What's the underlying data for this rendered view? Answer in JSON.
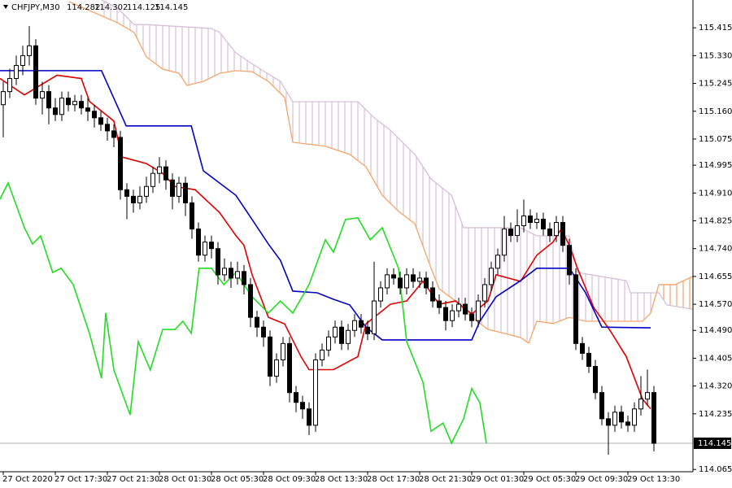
{
  "header": {
    "symbol": "CHFJPY,M30",
    "ohlc_labels": [
      "114.282",
      "114.302",
      "114.125",
      "114.145"
    ]
  },
  "chart_data": {
    "type": "candlestick",
    "xlim": [
      -0.5,
      106
    ],
    "ylim": [
      114.058,
      115.5
    ],
    "xticks": [
      {
        "value": 0,
        "label": "27 Oct 2020"
      },
      {
        "value": 8,
        "label": "27 Oct 17:30"
      },
      {
        "value": 16,
        "label": "27 Oct 21:30"
      },
      {
        "value": 24,
        "label": "28 Oct 01:30"
      },
      {
        "value": 32,
        "label": "28 Oct 05:30"
      },
      {
        "value": 40,
        "label": "28 Oct 09:30"
      },
      {
        "value": 48,
        "label": "28 Oct 13:30"
      },
      {
        "value": 56,
        "label": "28 Oct 17:30"
      },
      {
        "value": 64,
        "label": "28 Oct 21:30"
      },
      {
        "value": 72,
        "label": "29 Oct 01:30"
      },
      {
        "value": 80,
        "label": "29 Oct 05:30"
      },
      {
        "value": 88,
        "label": "29 Oct 09:30"
      },
      {
        "value": 96,
        "label": "29 Oct 13:30"
      }
    ],
    "yticks": [
      {
        "value": 115.415,
        "label": "115.415"
      },
      {
        "value": 115.33,
        "label": "115.330"
      },
      {
        "value": 115.245,
        "label": "115.245"
      },
      {
        "value": 115.16,
        "label": "115.160"
      },
      {
        "value": 115.075,
        "label": "115.075"
      },
      {
        "value": 114.995,
        "label": "114.995"
      },
      {
        "value": 114.91,
        "label": "114.910"
      },
      {
        "value": 114.825,
        "label": "114.825"
      },
      {
        "value": 114.74,
        "label": "114.740"
      },
      {
        "value": 114.655,
        "label": "114.655"
      },
      {
        "value": 114.57,
        "label": "114.570"
      },
      {
        "value": 114.49,
        "label": "114.490"
      },
      {
        "value": 114.405,
        "label": "114.405"
      },
      {
        "value": 114.32,
        "label": "114.320"
      },
      {
        "value": 114.235,
        "label": "114.235"
      },
      {
        "value": 114.065,
        "label": "114.065"
      }
    ],
    "current_price": 114.145,
    "bull_color": "#ffffff",
    "bear_color": "#000000",
    "open": [
      115.18,
      115.22,
      115.26,
      115.3,
      115.33,
      115.36,
      115.2,
      115.22,
      115.17,
      115.15,
      115.2,
      115.18,
      115.19,
      115.17,
      115.16,
      115.14,
      115.12,
      115.1,
      115.08,
      114.92,
      114.9,
      114.88,
      114.9,
      114.93,
      114.97,
      114.99,
      114.95,
      114.9,
      114.94,
      114.88,
      114.8,
      114.72,
      114.76,
      114.74,
      114.66,
      114.68,
      114.65,
      114.67,
      114.63,
      114.53,
      114.5,
      114.47,
      114.35,
      114.4,
      114.45,
      114.3,
      114.27,
      114.25,
      114.2,
      114.4,
      114.43,
      114.47,
      114.5,
      114.45,
      114.49,
      114.52,
      114.5,
      114.48,
      114.58,
      114.62,
      114.66,
      114.65,
      114.62,
      114.66,
      114.64,
      114.65,
      114.62,
      114.58,
      114.56,
      114.52,
      114.55,
      114.57,
      114.54,
      114.52,
      114.58,
      114.63,
      114.68,
      114.72,
      114.8,
      114.78,
      114.81,
      114.84,
      114.82,
      114.83,
      114.8,
      114.78,
      114.82,
      114.75,
      114.66,
      114.45,
      114.42,
      114.38,
      114.3,
      114.22,
      114.2,
      114.24,
      114.21,
      114.2,
      114.25,
      114.28,
      114.3
    ],
    "high": [
      115.25,
      115.29,
      115.33,
      115.36,
      115.42,
      115.38,
      115.25,
      115.24,
      115.2,
      115.22,
      115.22,
      115.21,
      115.21,
      115.2,
      115.18,
      115.16,
      115.14,
      115.12,
      115.1,
      114.94,
      114.92,
      114.93,
      114.96,
      114.99,
      115.02,
      115.01,
      114.97,
      114.96,
      114.96,
      114.9,
      114.82,
      114.78,
      114.78,
      114.76,
      114.71,
      114.7,
      114.7,
      114.69,
      114.65,
      114.55,
      114.52,
      114.49,
      114.42,
      114.47,
      114.47,
      114.32,
      114.29,
      114.27,
      114.42,
      114.45,
      114.49,
      114.52,
      114.52,
      114.51,
      114.54,
      114.54,
      114.52,
      114.7,
      114.64,
      114.68,
      114.68,
      114.67,
      114.68,
      114.68,
      114.67,
      114.67,
      114.64,
      114.6,
      114.58,
      114.57,
      114.59,
      114.59,
      114.56,
      114.6,
      114.65,
      114.7,
      114.74,
      114.84,
      114.82,
      114.86,
      114.89,
      114.86,
      114.85,
      114.85,
      114.82,
      114.84,
      114.84,
      114.77,
      114.68,
      114.47,
      114.44,
      114.4,
      114.32,
      114.24,
      114.26,
      114.26,
      114.23,
      114.27,
      114.35,
      114.37,
      114.32
    ],
    "low": [
      115.08,
      115.2,
      115.24,
      115.27,
      115.3,
      115.18,
      115.15,
      115.12,
      115.13,
      115.13,
      115.16,
      115.16,
      115.15,
      115.13,
      115.11,
      115.1,
      115.07,
      115.05,
      114.89,
      114.83,
      114.85,
      114.86,
      114.88,
      114.91,
      114.94,
      114.92,
      114.86,
      114.88,
      114.84,
      114.77,
      114.7,
      114.7,
      114.71,
      114.63,
      114.64,
      114.62,
      114.63,
      114.6,
      114.5,
      114.47,
      114.44,
      114.32,
      114.33,
      114.38,
      114.27,
      114.24,
      114.22,
      114.17,
      114.18,
      114.38,
      114.41,
      114.45,
      114.43,
      114.43,
      114.47,
      114.48,
      114.46,
      114.46,
      114.56,
      114.6,
      114.63,
      114.6,
      114.6,
      114.62,
      114.62,
      114.6,
      114.56,
      114.54,
      114.49,
      114.5,
      114.53,
      114.52,
      114.5,
      114.5,
      114.56,
      114.61,
      114.66,
      114.7,
      114.76,
      114.76,
      114.79,
      114.8,
      114.8,
      114.78,
      114.76,
      114.76,
      114.73,
      114.63,
      114.43,
      114.4,
      114.36,
      114.28,
      114.2,
      114.11,
      114.18,
      114.19,
      114.18,
      114.18,
      114.23,
      114.26,
      114.12
    ],
    "close": [
      115.22,
      115.26,
      115.3,
      115.33,
      115.36,
      115.2,
      115.22,
      115.17,
      115.15,
      115.2,
      115.18,
      115.19,
      115.17,
      115.16,
      115.14,
      115.12,
      115.1,
      115.08,
      114.92,
      114.9,
      114.88,
      114.9,
      114.93,
      114.97,
      114.99,
      114.95,
      114.9,
      114.94,
      114.88,
      114.8,
      114.72,
      114.76,
      114.74,
      114.66,
      114.68,
      114.65,
      114.67,
      114.63,
      114.53,
      114.5,
      114.47,
      114.35,
      114.4,
      114.45,
      114.3,
      114.27,
      114.25,
      114.2,
      114.4,
      114.43,
      114.47,
      114.5,
      114.45,
      114.49,
      114.52,
      114.5,
      114.48,
      114.58,
      114.62,
      114.66,
      114.65,
      114.62,
      114.66,
      114.64,
      114.65,
      114.62,
      114.58,
      114.56,
      114.52,
      114.55,
      114.57,
      114.54,
      114.52,
      114.58,
      114.63,
      114.68,
      114.72,
      114.8,
      114.78,
      114.81,
      114.84,
      114.82,
      114.83,
      114.8,
      114.78,
      114.82,
      114.75,
      114.66,
      114.45,
      114.42,
      114.38,
      114.3,
      114.22,
      114.2,
      114.24,
      114.21,
      114.2,
      114.25,
      114.28,
      114.3,
      114.145
    ],
    "series": [
      {
        "color": "#e00000",
        "x": [
          -0.5,
          3.25,
          8.25,
          12,
          13.25,
          17,
          18.25,
          22,
          24.5,
          26.4,
          29.5,
          33.25,
          35.75,
          37,
          38.25,
          40.75,
          43.25,
          45.75,
          47,
          50.75,
          54.5,
          55.75,
          59.5,
          62,
          64.5,
          67,
          69.5,
          72,
          74.5,
          75.75,
          79.5,
          82,
          84.5,
          85.75,
          87,
          88.25,
          90.75,
          93.25,
          95.75,
          98.25,
          99.5
        ],
        "values": [
          115.26,
          115.21,
          115.27,
          115.26,
          115.19,
          115.13,
          115.02,
          115.0,
          114.97,
          114.93,
          114.92,
          114.85,
          114.78,
          114.75,
          114.66,
          114.53,
          114.51,
          114.41,
          114.37,
          114.37,
          114.41,
          114.51,
          114.57,
          114.58,
          114.64,
          114.57,
          114.58,
          114.54,
          114.58,
          114.66,
          114.64,
          114.72,
          114.76,
          114.8,
          114.75,
          114.68,
          114.56,
          114.49,
          114.41,
          114.28,
          114.25
        ]
      },
      {
        "color": "#0000c8",
        "x": [
          -0.5,
          15.1,
          18.9,
          28.9,
          30.75,
          35.75,
          38.25,
          40.75,
          42.6,
          44.5,
          48.25,
          50.75,
          53.25,
          55.75,
          58.25,
          72,
          73.25,
          75.75,
          79.5,
          82,
          87,
          89.5,
          92,
          99.5
        ],
        "values": [
          115.284,
          115.284,
          115.115,
          115.115,
          114.978,
          114.903,
          114.829,
          114.754,
          114.704,
          114.61,
          114.605,
          114.585,
          114.568,
          114.5,
          114.461,
          114.461,
          114.518,
          114.593,
          114.642,
          114.68,
          114.68,
          114.605,
          114.5,
          114.498
        ]
      },
      {
        "color": "#22dd22",
        "x": [
          -0.5,
          0.75,
          3.25,
          4.5,
          5.75,
          7.6,
          8.9,
          10.75,
          13.25,
          15.1,
          15.75,
          17,
          19.5,
          20.75,
          22.6,
          24.5,
          26.4,
          27.6,
          28.9,
          30.1,
          32,
          33.9,
          35.75,
          38.25,
          40.75,
          42.6,
          44.5,
          47,
          49.5,
          50.75,
          52.6,
          54.5,
          56.4,
          58.25,
          60.75,
          62,
          64.5,
          65.75,
          67.6,
          68.9,
          70.75,
          72,
          73.25,
          74.25
        ],
        "values": [
          114.891,
          114.941,
          114.804,
          114.754,
          114.779,
          114.667,
          114.68,
          114.63,
          114.481,
          114.344,
          114.543,
          114.369,
          114.232,
          114.456,
          114.369,
          114.493,
          114.493,
          114.518,
          114.481,
          114.68,
          114.68,
          114.63,
          114.667,
          114.593,
          114.543,
          114.58,
          114.543,
          114.63,
          114.767,
          114.729,
          114.829,
          114.834,
          114.767,
          114.804,
          114.68,
          114.456,
          114.332,
          114.182,
          114.207,
          114.145,
          114.22,
          114.312,
          114.269,
          114.145
        ]
      }
    ],
    "cloud": {
      "span_a": {
        "color": "#f4a46a",
        "x": [
          10.1,
          17.6,
          20.1,
          22,
          24.5,
          27,
          28.25,
          30.75,
          33.25,
          35.75,
          38.25,
          40.75,
          43.25,
          44.5,
          49.5,
          53.25,
          55.75,
          58.25,
          60.75,
          63.25,
          65.75,
          67,
          69.5,
          72,
          74.5,
          77,
          79.5,
          80.75,
          82,
          84.5,
          87,
          89.5,
          92,
          98.25,
          99.5,
          100.75,
          103.25,
          106
        ],
        "values": [
          115.495,
          115.43,
          115.401,
          115.326,
          115.289,
          115.276,
          115.239,
          115.251,
          115.276,
          115.284,
          115.281,
          115.251,
          115.202,
          115.065,
          115.053,
          115.028,
          114.99,
          114.903,
          114.854,
          114.816,
          114.68,
          114.617,
          114.58,
          114.53,
          114.493,
          114.481,
          114.468,
          114.451,
          114.518,
          114.511,
          114.53,
          114.518,
          114.518,
          114.518,
          114.543,
          114.63,
          114.63,
          114.655
        ]
      },
      "span_b": {
        "color": "#d8bfd8",
        "x": [
          15.1,
          17.6,
          20.1,
          22,
          32,
          33.25,
          35.75,
          39.5,
          42.6,
          44.5,
          54.5,
          57,
          59.5,
          63.25,
          65.75,
          68.9,
          70.75,
          79.5,
          82,
          87,
          88.25,
          95.75,
          96.4,
          100.75,
          102,
          106
        ],
        "values": [
          115.5,
          115.475,
          115.425,
          115.425,
          115.413,
          115.401,
          115.338,
          115.289,
          115.251,
          115.189,
          115.189,
          115.14,
          115.102,
          115.028,
          114.953,
          114.903,
          114.804,
          114.804,
          114.779,
          114.779,
          114.667,
          114.642,
          114.605,
          114.605,
          114.568,
          114.555
        ]
      }
    }
  }
}
